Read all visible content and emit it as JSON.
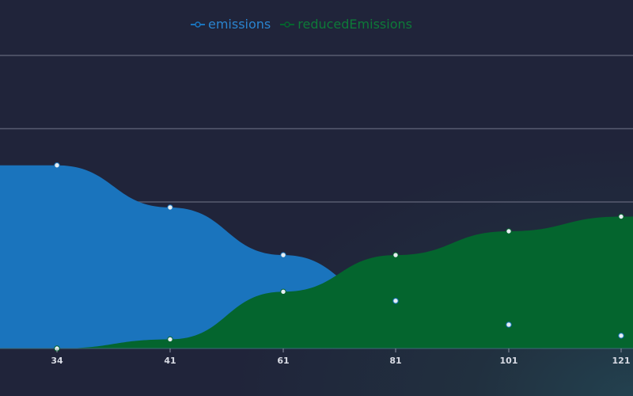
{
  "chart_data": {
    "type": "area",
    "x": [
      34,
      41,
      61,
      81,
      101,
      121
    ],
    "series": [
      {
        "name": "emissions",
        "values": [
          100,
          77,
          51,
          26,
          13,
          7
        ],
        "color": "#1a74bd"
      },
      {
        "name": "reducedEmissions",
        "values": [
          0,
          5,
          31,
          51,
          64,
          72
        ],
        "color": "#04652e"
      }
    ],
    "ylim": [
      0,
      160
    ],
    "grid": true,
    "legend": "top-center",
    "line_shape": "smooth"
  }
}
